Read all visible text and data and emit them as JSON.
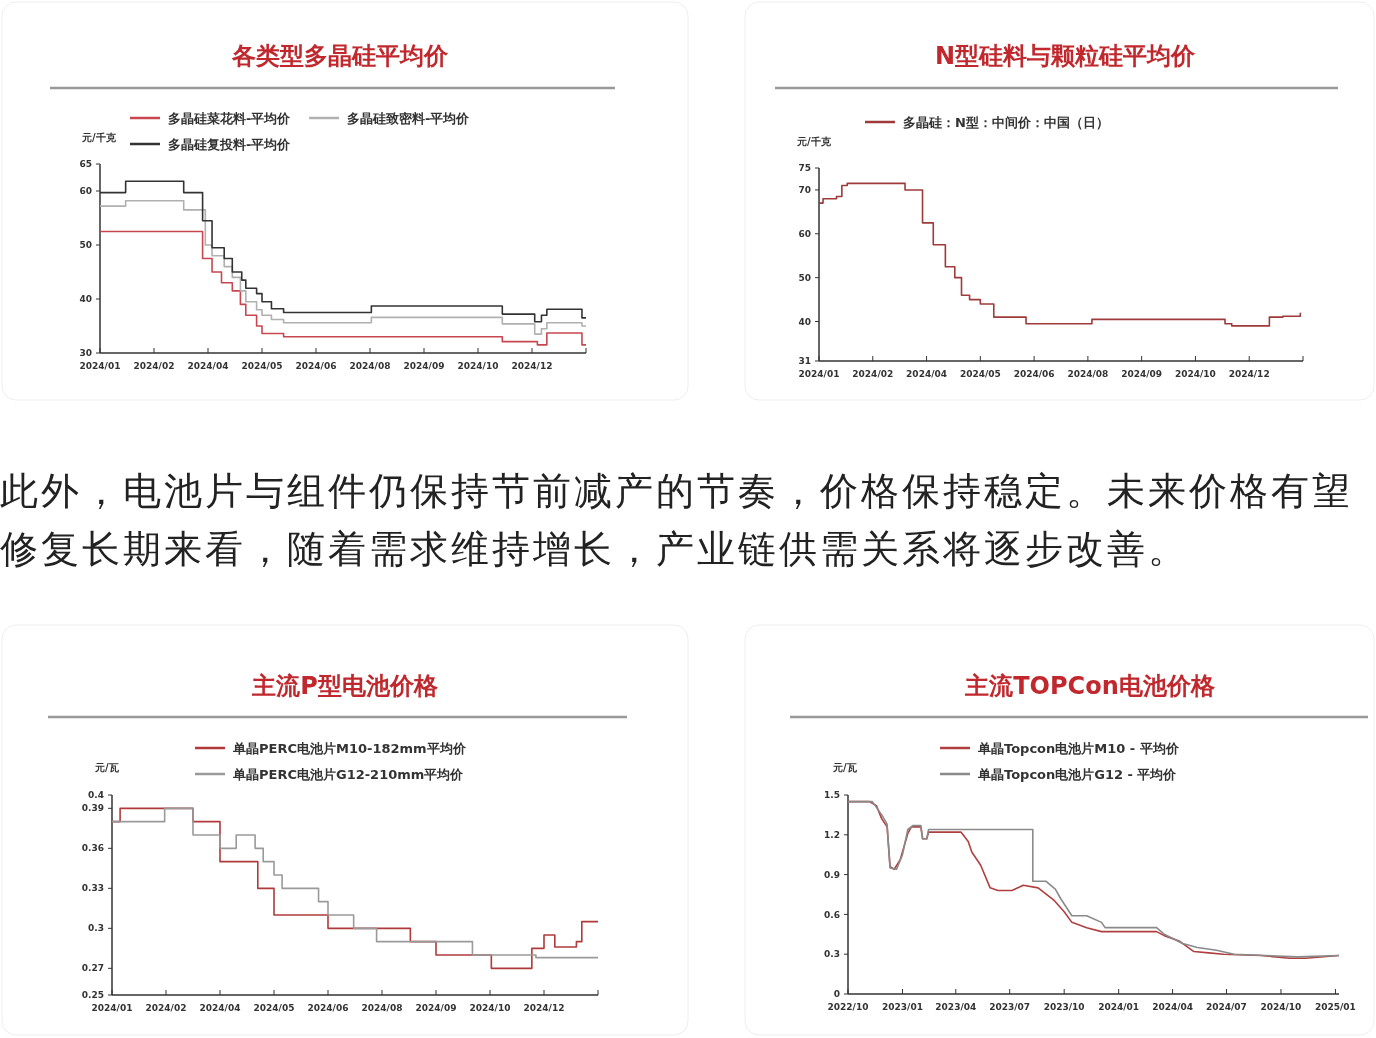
{
  "chart_data": [
    {
      "type": "step",
      "title": "各类型多晶硅平均价",
      "ylabel": "元/千克",
      "legend": "top",
      "grid": false,
      "xlim": [
        "2024-01-20",
        "2025-01-14"
      ],
      "xticks": [
        {
          "value": "2024-01-20",
          "label": "2024/01"
        },
        {
          "value": "2024-02-29",
          "label": "2024/02"
        },
        {
          "value": "2024-04-09",
          "label": "2024/04"
        },
        {
          "value": "2024-05-19",
          "label": "2024/05"
        },
        {
          "value": "2024-06-28",
          "label": "2024/06"
        },
        {
          "value": "2024-08-07",
          "label": "2024/08"
        },
        {
          "value": "2024-09-16",
          "label": "2024/09"
        },
        {
          "value": "2024-10-26",
          "label": "2024/10"
        },
        {
          "value": "2024-12-05",
          "label": "2024/12"
        },
        {
          "value": "2025-01-14",
          "label": null
        }
      ],
      "ylim": [
        30,
        65
      ],
      "yticks": [
        30,
        40,
        50,
        60,
        65
      ],
      "series": [
        {
          "name": "多晶硅菜花料-平均价",
          "color": "#c8474f",
          "x": [
            "2024-01-20",
            "2024-04-05",
            "2024-04-12",
            "2024-04-19",
            "2024-04-27",
            "2024-05-03",
            "2024-05-07",
            "2024-05-15",
            "2024-05-19",
            "2024-06-04",
            "2024-11-13",
            "2024-12-09",
            "2024-12-16",
            "2025-01-11",
            "2025-01-14"
          ],
          "values": [
            52.5,
            47.5,
            45,
            43,
            41.5,
            39,
            37,
            35,
            33.6,
            33,
            32.1,
            31.5,
            33.7,
            31.5,
            31.5
          ]
        },
        {
          "name": "多晶硅致密料-平均价",
          "color": "#b0b0b0",
          "x": [
            "2024-01-20",
            "2024-02-08",
            "2024-03-22",
            "2024-04-07",
            "2024-04-12",
            "2024-04-21",
            "2024-04-27",
            "2024-05-03",
            "2024-05-07",
            "2024-05-15",
            "2024-05-19",
            "2024-05-26",
            "2024-06-04",
            "2024-08-08",
            "2024-11-13",
            "2024-12-07",
            "2024-12-12",
            "2024-12-16",
            "2025-01-11",
            "2025-01-14"
          ],
          "values": [
            57.2,
            58.2,
            56.5,
            50,
            48,
            46,
            44,
            41.5,
            39.5,
            38,
            37,
            36.2,
            35.6,
            36.6,
            35.4,
            33.5,
            34.5,
            35.6,
            35,
            35
          ]
        },
        {
          "name": "多晶硅复投料-平均价",
          "color": "#333333",
          "x": [
            "2024-01-20",
            "2024-02-08",
            "2024-03-22",
            "2024-04-05",
            "2024-04-12",
            "2024-04-21",
            "2024-04-27",
            "2024-05-04",
            "2024-05-07",
            "2024-05-15",
            "2024-05-19",
            "2024-05-26",
            "2024-06-04",
            "2024-08-08",
            "2024-11-13",
            "2024-12-07",
            "2024-12-12",
            "2024-12-16",
            "2025-01-11",
            "2025-01-14"
          ],
          "values": [
            59.7,
            61.8,
            59.7,
            54.5,
            49.5,
            47.5,
            45,
            43.5,
            42,
            41,
            39.5,
            38.2,
            37.5,
            38.7,
            37.2,
            35.8,
            37,
            38.1,
            36.5,
            36.5
          ]
        }
      ]
    },
    {
      "type": "step",
      "title": "N型硅料与颗粒硅平均价",
      "ylabel": "元/千克",
      "legend": "top",
      "grid": false,
      "xlim": [
        "2024-01-20",
        "2025-01-14"
      ],
      "xticks": [
        {
          "value": "2024-01-20",
          "label": "2024/01"
        },
        {
          "value": "2024-02-29",
          "label": "2024/02"
        },
        {
          "value": "2024-04-09",
          "label": "2024/04"
        },
        {
          "value": "2024-05-19",
          "label": "2024/05"
        },
        {
          "value": "2024-06-28",
          "label": "2024/06"
        },
        {
          "value": "2024-08-07",
          "label": "2024/08"
        },
        {
          "value": "2024-09-16",
          "label": "2024/09"
        },
        {
          "value": "2024-10-26",
          "label": "2024/10"
        },
        {
          "value": "2024-12-05",
          "label": "2024/12"
        },
        {
          "value": "2025-01-14",
          "label": null
        }
      ],
      "ylim": [
        31,
        75
      ],
      "yticks": [
        31,
        40,
        50,
        60,
        70,
        75
      ],
      "series": [
        {
          "name": "多晶硅：N型：中间价：中国（日）",
          "color": "#9e3a3a",
          "x": [
            "2024-01-20",
            "2024-01-23",
            "2024-02-02",
            "2024-02-06",
            "2024-02-10",
            "2024-03-24",
            "2024-04-06",
            "2024-04-14",
            "2024-04-23",
            "2024-04-30",
            "2024-05-05",
            "2024-05-11",
            "2024-05-19",
            "2024-05-29",
            "2024-06-22",
            "2024-08-10",
            "2024-11-17",
            "2024-11-22",
            "2024-12-20",
            "2024-12-30",
            "2025-01-12"
          ],
          "values": [
            67,
            68,
            68.5,
            71,
            71.5,
            70,
            62.5,
            57.5,
            52.5,
            50,
            46,
            45,
            44,
            41,
            39.5,
            40.5,
            39.5,
            39,
            41,
            41.2,
            42
          ]
        }
      ]
    },
    {
      "type": "other",
      "annotations": [
        "此外，电池片与组件仍保持节前减产的节奏，价格保持稳定。未来价格有望修复长期来看，随着需求维持增长，产业链供需关系将逐步改善。"
      ]
    },
    {
      "type": "step",
      "title": "主流P型电池价格",
      "ylabel": "元/瓦",
      "legend": "top",
      "grid": false,
      "xlim": [
        "2024-01-20",
        "2025-01-14"
      ],
      "xticks": [
        {
          "value": "2024-01-20",
          "label": "2024/01"
        },
        {
          "value": "2024-02-29",
          "label": "2024/02"
        },
        {
          "value": "2024-04-09",
          "label": "2024/04"
        },
        {
          "value": "2024-05-19",
          "label": "2024/05"
        },
        {
          "value": "2024-06-28",
          "label": "2024/06"
        },
        {
          "value": "2024-08-07",
          "label": "2024/08"
        },
        {
          "value": "2024-09-16",
          "label": "2024/09"
        },
        {
          "value": "2024-10-26",
          "label": "2024/10"
        },
        {
          "value": "2024-12-05",
          "label": "2024/12"
        },
        {
          "value": "2025-01-14",
          "label": null
        }
      ],
      "ylim": [
        0.25,
        0.4
      ],
      "yticks": [
        0.25,
        0.27,
        0.3,
        0.33,
        0.36,
        0.39,
        0.4
      ],
      "series": [
        {
          "name": "单晶PERC电池片M10-182mm平均价",
          "color": "#b03a3a",
          "x": [
            "2024-01-20",
            "2024-01-26",
            "2024-03-20",
            "2024-04-09",
            "2024-05-07",
            "2024-05-19",
            "2024-06-28",
            "2024-08-28",
            "2024-09-16",
            "2024-10-27",
            "2024-11-26",
            "2024-12-05",
            "2024-12-13",
            "2024-12-29",
            "2025-01-02",
            "2025-01-14"
          ],
          "values": [
            0.38,
            0.39,
            0.38,
            0.35,
            0.33,
            0.31,
            0.3,
            0.29,
            0.28,
            0.27,
            0.285,
            0.295,
            0.286,
            0.29,
            0.305,
            0.305
          ]
        },
        {
          "name": "单晶PERC电池片G12-210mm平均价",
          "color": "#9a9a9a",
          "x": [
            "2024-01-20",
            "2024-02-28",
            "2024-03-20",
            "2024-04-09",
            "2024-04-21",
            "2024-05-05",
            "2024-05-11",
            "2024-05-19",
            "2024-05-25",
            "2024-06-21",
            "2024-06-28",
            "2024-07-17",
            "2024-08-03",
            "2024-10-13",
            "2024-11-29",
            "2025-01-14"
          ],
          "values": [
            0.38,
            0.39,
            0.37,
            0.36,
            0.37,
            0.36,
            0.35,
            0.34,
            0.33,
            0.32,
            0.31,
            0.3,
            0.29,
            0.28,
            0.278,
            0.278
          ]
        }
      ]
    },
    {
      "type": "line",
      "title": "主流TOPCon电池价格",
      "ylabel": "元/瓦",
      "legend": "top",
      "grid": false,
      "xlim": [
        "2022-10-01",
        "2025-01-07"
      ],
      "xticks": [
        {
          "value": "2022-10-01",
          "label": "2022/10"
        },
        {
          "value": "2023-01-01",
          "label": "2023/01"
        },
        {
          "value": "2023-04-01",
          "label": "2023/04"
        },
        {
          "value": "2023-07-01",
          "label": "2023/07"
        },
        {
          "value": "2023-10-01",
          "label": "2023/10"
        },
        {
          "value": "2024-01-01",
          "label": "2024/01"
        },
        {
          "value": "2024-04-01",
          "label": "2024/04"
        },
        {
          "value": "2024-07-01",
          "label": "2024/07"
        },
        {
          "value": "2024-10-01",
          "label": "2024/10"
        },
        {
          "value": "2025-01-01",
          "label": "2025/01"
        }
      ],
      "ylim": [
        0,
        1.5
      ],
      "yticks": [
        0,
        0.3,
        0.6,
        0.9,
        1.2,
        1.5
      ],
      "series": [
        {
          "name": "单晶Topcon电池片M10 - 平均价",
          "color": "#b04040",
          "x": [
            "2022-10-01",
            "2022-11-06",
            "2022-11-18",
            "2022-11-27",
            "2022-12-06",
            "2022-12-11",
            "2022-12-18",
            "2022-12-28",
            "2023-01-10",
            "2023-01-16",
            "2023-02-01",
            "2023-02-04",
            "2023-02-11",
            "2023-02-14",
            "2023-04-10",
            "2023-04-22",
            "2023-04-28",
            "2023-05-13",
            "2023-05-29",
            "2023-06-11",
            "2023-07-05",
            "2023-07-24",
            "2023-08-18",
            "2023-09-13",
            "2023-10-01",
            "2023-10-14",
            "2023-11-08",
            "2023-12-03",
            "2024-03-05",
            "2024-03-18",
            "2024-04-12",
            "2024-05-07",
            "2024-06-01",
            "2024-06-26",
            "2024-08-28",
            "2024-10-16",
            "2024-11-11",
            "2025-01-07"
          ],
          "values": [
            1.45,
            1.45,
            1.42,
            1.32,
            1.26,
            0.96,
            0.94,
            1.01,
            1.21,
            1.26,
            1.26,
            1.17,
            1.17,
            1.22,
            1.22,
            1.15,
            1.07,
            0.97,
            0.8,
            0.78,
            0.78,
            0.82,
            0.8,
            0.71,
            0.62,
            0.54,
            0.5,
            0.47,
            0.47,
            0.44,
            0.4,
            0.32,
            0.31,
            0.3,
            0.29,
            0.27,
            0.27,
            0.29
          ]
        },
        {
          "name": "单晶Topcon电池片G12 - 平均价",
          "color": "#8a8a8a",
          "x": [
            "2022-10-01",
            "2022-11-11",
            "2022-11-27",
            "2022-12-06",
            "2022-12-11",
            "2022-12-22",
            "2023-01-01",
            "2023-01-10",
            "2023-01-19",
            "2023-02-01",
            "2023-02-04",
            "2023-02-11",
            "2023-02-14",
            "2023-08-09",
            "2023-08-09",
            "2023-08-31",
            "2023-09-16",
            "2023-09-25",
            "2023-10-14",
            "2023-11-08",
            "2023-12-03",
            "2023-12-09",
            "2024-03-05",
            "2024-03-18",
            "2024-04-18",
            "2024-05-13",
            "2024-06-14",
            "2024-07-14",
            "2024-10-29",
            "2025-01-07"
          ],
          "values": [
            1.45,
            1.45,
            1.35,
            1.28,
            0.95,
            0.94,
            1.05,
            1.24,
            1.27,
            1.27,
            1.17,
            1.17,
            1.24,
            1.24,
            0.85,
            0.85,
            0.79,
            0.72,
            0.59,
            0.59,
            0.54,
            0.5,
            0.5,
            0.45,
            0.38,
            0.35,
            0.33,
            0.3,
            0.28,
            0.29
          ]
        }
      ]
    }
  ]
}
